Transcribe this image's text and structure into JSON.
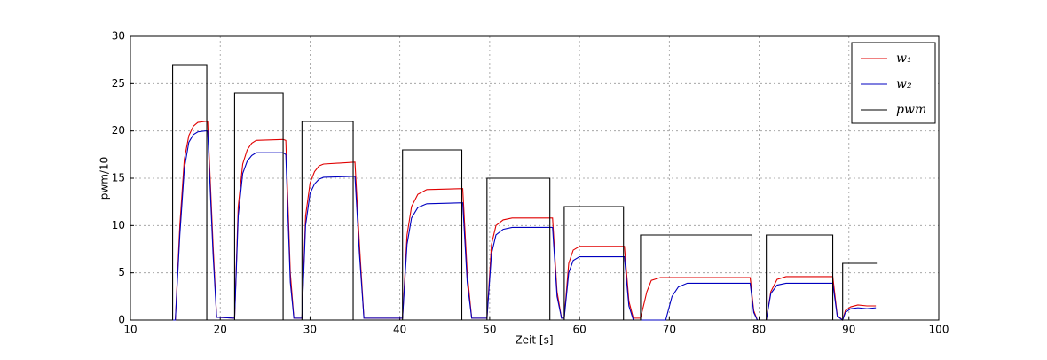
{
  "chart_data": {
    "type": "line",
    "xlabel": "Zeit [s]",
    "ylabel": "pwm/10",
    "xlim": [
      10,
      100
    ],
    "xticks": [
      10,
      20,
      30,
      40,
      50,
      60,
      70,
      80,
      90,
      100
    ],
    "ylim": [
      0,
      30
    ],
    "yticks": [
      0,
      5,
      10,
      15,
      20,
      25,
      30
    ],
    "grid": true,
    "legend": "upper right",
    "series": [
      {
        "name": "w₁",
        "color": "#e00000",
        "x": [
          11,
          15,
          15.5,
          16,
          16.5,
          17,
          17.5,
          18.3,
          18.6,
          19.2,
          19.6,
          21.6,
          22,
          22.5,
          23,
          23.5,
          24,
          27,
          27.3,
          27.8,
          28.2,
          29.1,
          29.5,
          30,
          30.5,
          31,
          31.5,
          35,
          35.5,
          36,
          40.3,
          40.8,
          41.3,
          42,
          43,
          47,
          47.5,
          48,
          49.7,
          50.2,
          50.7,
          51.5,
          52.5,
          57,
          57.5,
          58,
          58.3,
          58.8,
          59.3,
          60,
          65,
          65.5,
          66,
          66.8,
          67.5,
          68,
          69,
          79,
          79.4,
          79.8,
          80.8,
          81.3,
          82,
          83,
          88.2,
          88.7,
          89.3,
          89.6,
          90.2,
          91,
          92,
          93
        ],
        "values": [
          0,
          0,
          10,
          17,
          19.5,
          20.5,
          20.9,
          21,
          21,
          8,
          0.3,
          0.2,
          12,
          16.5,
          18,
          18.7,
          19,
          19.1,
          19,
          5,
          0.2,
          0.2,
          11,
          14.5,
          15.7,
          16.3,
          16.5,
          16.7,
          8,
          0.2,
          0.2,
          9,
          12,
          13.3,
          13.8,
          13.9,
          5,
          0.2,
          0.2,
          8,
          10,
          10.6,
          10.8,
          10.8,
          3,
          0.2,
          0.2,
          6,
          7.4,
          7.8,
          7.8,
          2,
          0.2,
          0.2,
          3,
          4.2,
          4.5,
          4.5,
          1,
          0,
          0,
          3,
          4.3,
          4.6,
          4.6,
          0.5,
          0,
          1,
          1.4,
          1.6,
          1.5,
          1.5
        ]
      },
      {
        "name": "w₂",
        "color": "#0000c0",
        "x": [
          11,
          15,
          15.5,
          16,
          16.5,
          17,
          17.5,
          18.3,
          18.6,
          19.2,
          19.6,
          21.6,
          22,
          22.5,
          23,
          23.5,
          24,
          27,
          27.3,
          27.8,
          28.2,
          29.1,
          29.5,
          30,
          30.5,
          31,
          31.5,
          35,
          35.5,
          36,
          40.3,
          40.8,
          41.3,
          42,
          43,
          47,
          47.5,
          48,
          49.7,
          50.2,
          50.7,
          51.5,
          52.5,
          57,
          57.5,
          58,
          58.3,
          58.8,
          59.3,
          60,
          65,
          65.5,
          66,
          69.6,
          70.3,
          71,
          72,
          79,
          79.4,
          79.8,
          80.8,
          81.3,
          82,
          83,
          88.2,
          88.7,
          89.3,
          89.6,
          90.2,
          91,
          92,
          93
        ],
        "values": [
          0,
          0,
          9,
          16,
          18.8,
          19.6,
          19.9,
          20,
          20,
          7,
          0.3,
          0.2,
          11,
          15.5,
          16.8,
          17.4,
          17.7,
          17.7,
          17.5,
          4,
          0.2,
          0.2,
          10,
          13.4,
          14.4,
          14.9,
          15.1,
          15.2,
          7,
          0.2,
          0.2,
          8,
          10.8,
          11.9,
          12.3,
          12.4,
          4,
          0.2,
          0.2,
          7,
          9,
          9.6,
          9.8,
          9.8,
          2.5,
          0.2,
          0.2,
          5,
          6.3,
          6.7,
          6.7,
          1.5,
          0,
          0,
          2.5,
          3.5,
          3.9,
          3.9,
          0.8,
          0,
          0,
          2.8,
          3.7,
          3.9,
          3.9,
          0.4,
          0,
          0.8,
          1.2,
          1.3,
          1.2,
          1.3
        ]
      },
      {
        "name": "pwm",
        "color": "#000000",
        "x": [
          11,
          14.7,
          14.7,
          18.5,
          18.5,
          21.6,
          21.6,
          27,
          27,
          29.1,
          29.1,
          34.8,
          34.8,
          40.3,
          40.3,
          46.9,
          46.9,
          49.7,
          49.7,
          56.7,
          56.7,
          58.3,
          58.3,
          64.9,
          64.9,
          66.8,
          66.8,
          79.2,
          79.2,
          80.8,
          80.8,
          88.2,
          88.2,
          89.3,
          89.3,
          93.1
        ],
        "values": [
          0,
          0,
          27,
          27,
          0,
          0,
          24,
          24,
          0,
          0,
          21,
          21,
          0,
          0,
          18,
          18,
          0,
          0,
          15,
          15,
          0,
          0,
          12,
          12,
          0,
          0,
          9,
          9,
          0,
          0,
          9,
          9,
          0,
          0,
          6,
          6
        ]
      }
    ]
  }
}
